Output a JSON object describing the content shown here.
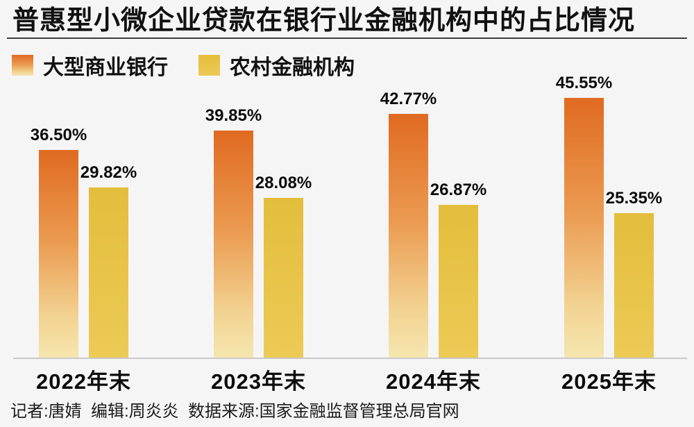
{
  "header": {
    "title": "普惠型小微企业贷款在银行业金融机构中的占比情况"
  },
  "legend": {
    "items": [
      {
        "label": "大型商业银行",
        "series_key": "large_commercial_banks"
      },
      {
        "label": "农村金融机构",
        "series_key": "rural_financial_institutions"
      }
    ]
  },
  "chart_data": {
    "type": "bar",
    "title": "普惠型小微企业贷款在银行业金融机构中的占比情况",
    "categories": [
      "2022年末",
      "2023年末",
      "2024年末",
      "2025年末"
    ],
    "series": [
      {
        "name": "大型商业银行",
        "values": [
          36.5,
          39.85,
          42.77,
          45.55
        ],
        "value_labels": [
          "36.50%",
          "39.85%",
          "42.77%",
          "45.55%"
        ]
      },
      {
        "name": "农村金融机构",
        "values": [
          29.82,
          28.08,
          26.87,
          25.35
        ],
        "value_labels": [
          "29.82%",
          "28.08%",
          "26.87%",
          "25.35%"
        ]
      }
    ],
    "unit": "%",
    "xlabel": "",
    "ylabel": "",
    "ylim": [
      0,
      50
    ],
    "grid": false,
    "axis_line": "bottom-only",
    "legend_position": "top-left",
    "value_labels_shown": true
  },
  "footer": {
    "credits": "记者:唐婧  编辑:周炎炎  数据来源:国家金融监督管理总局官网"
  },
  "colors": {
    "background": "#f5f5f6",
    "text": "#111111",
    "baseline": "#c9c9c9",
    "orange_top": "#e06a21",
    "orange_mid": "#eb9c52",
    "orange_low": "#f2d291",
    "orange_bottom": "#f5e6ae",
    "yellow_top": "#e3bd3c",
    "yellow_bottom": "#ecca55"
  }
}
